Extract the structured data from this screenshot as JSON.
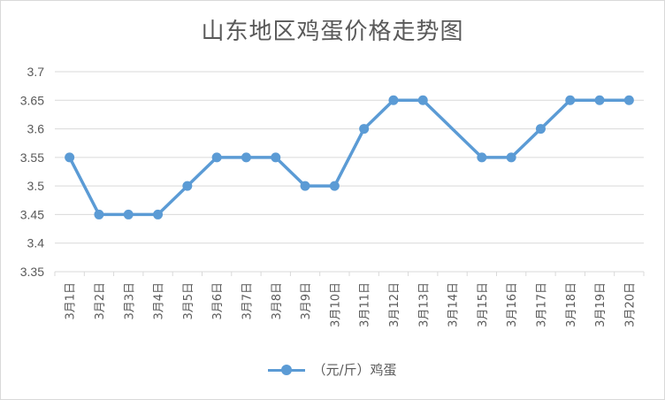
{
  "chart_data": {
    "type": "line",
    "title": "山东地区鸡蛋价格走势图",
    "categories": [
      "3月1日",
      "3月2日",
      "3月3日",
      "3月4日",
      "3月5日",
      "3月6日",
      "3月7日",
      "3月8日",
      "3月9日",
      "3月10日",
      "3月11日",
      "3月12日",
      "3月13日",
      "3月14日",
      "3月15日",
      "3月16日",
      "3月17日",
      "3月18日",
      "3月19日",
      "3月20日"
    ],
    "series": [
      {
        "name": "（元/斤）鸡蛋",
        "color": "#5b9bd5",
        "values": [
          3.55,
          3.45,
          3.45,
          3.45,
          3.5,
          3.55,
          3.55,
          3.55,
          3.5,
          3.5,
          3.6,
          3.65,
          3.65,
          null,
          3.55,
          3.55,
          3.6,
          3.65,
          3.65,
          3.65
        ]
      }
    ],
    "ylim": [
      3.35,
      3.7
    ],
    "yticks": [
      "3.35",
      "3.4",
      "3.45",
      "3.5",
      "3.55",
      "3.6",
      "3.65",
      "3.7"
    ],
    "xlabel": "",
    "ylabel": "",
    "grid": true,
    "legend_position": "bottom"
  }
}
